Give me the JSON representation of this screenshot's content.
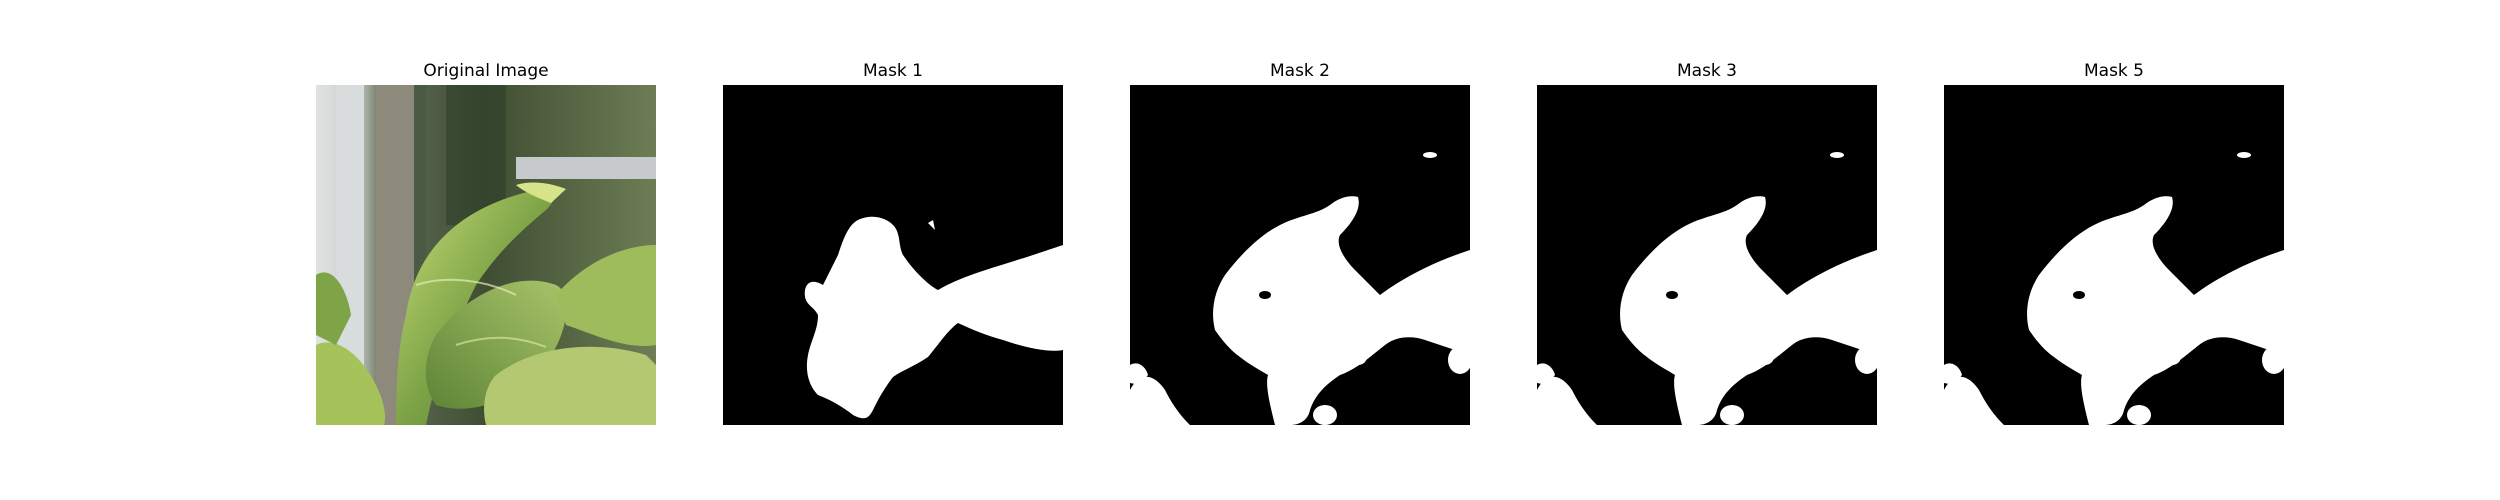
{
  "panels": [
    {
      "title": "Original Image",
      "kind": "photo"
    },
    {
      "title": "Mask 1",
      "kind": "mask"
    },
    {
      "title": "Mask 2",
      "kind": "mask"
    },
    {
      "title": "Mask 3",
      "kind": "mask"
    },
    {
      "title": "Mask 5",
      "kind": "mask"
    }
  ],
  "colors": {
    "mask_background": "#000000",
    "mask_foreground": "#ffffff",
    "leaf_light": "#b7d06a",
    "leaf_mid": "#6f9a3c",
    "leaf_dark": "#3f5f26",
    "post_gray": "#8d8a7c"
  }
}
